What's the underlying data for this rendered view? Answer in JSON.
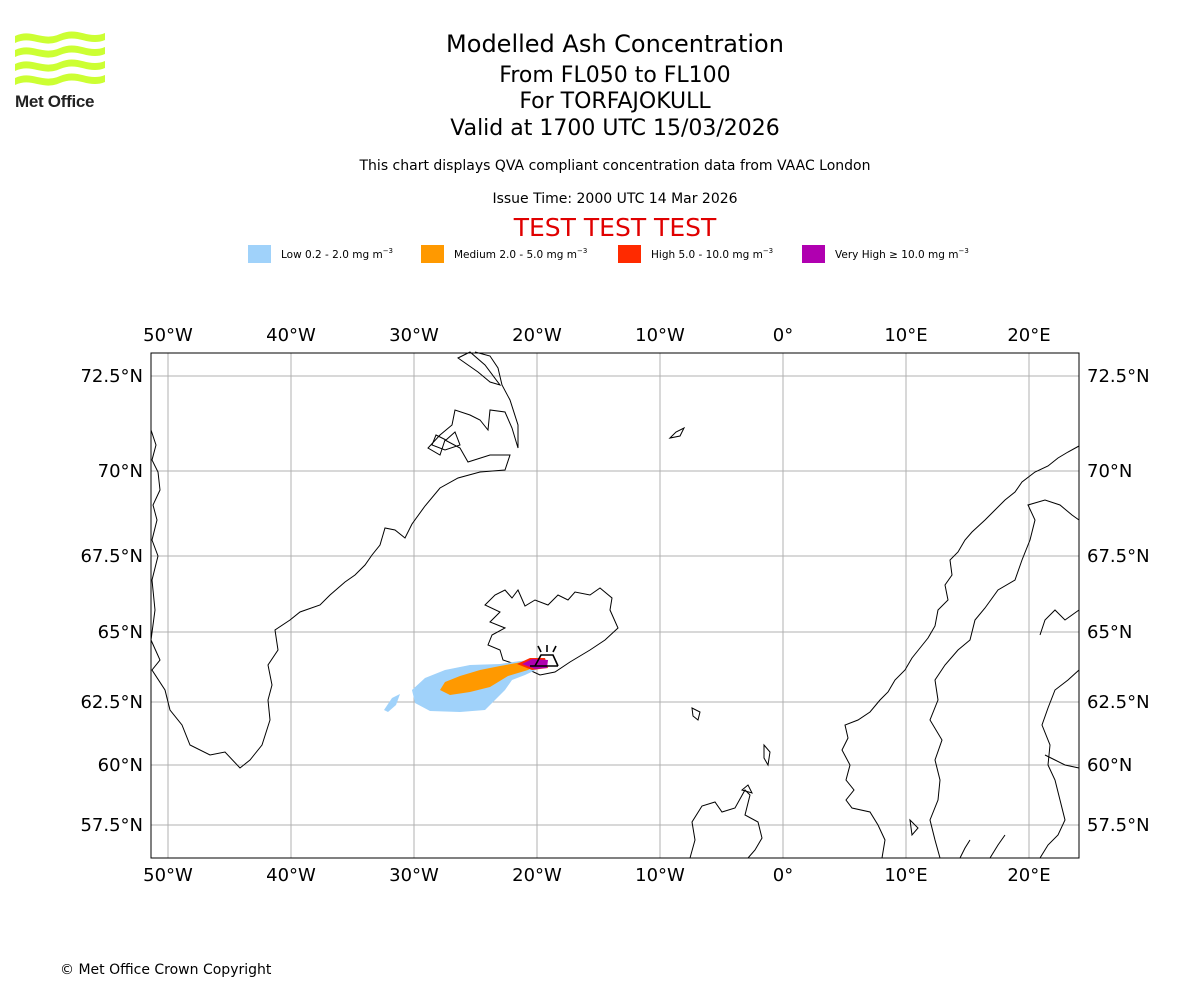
{
  "logo": {
    "text": "Met Office",
    "color": "#ccff33"
  },
  "header": {
    "title": "Modelled Ash Concentration",
    "levels": "From FL050 to FL100",
    "volcano": "For TORFAJOKULL",
    "valid": "Valid at 1700 UTC 15/03/2026",
    "note": "This chart displays QVA compliant concentration data from VAAC London",
    "issue": "Issue Time: 2000 UTC 14 Mar 2026",
    "test_banner": "TEST TEST TEST"
  },
  "legend": [
    {
      "label": "Low 0.2 - 2.0 mg m",
      "color": "#a0d2fa"
    },
    {
      "label": "Medium 2.0 - 5.0 mg m",
      "color": "#ff9900"
    },
    {
      "label": "High 5.0 - 10.0 mg m",
      "color": "#ff2a00"
    },
    {
      "label": "Very High ≥ 10.0 mg m",
      "color": "#b000b0"
    }
  ],
  "legend_unit_exponent": "−3",
  "map": {
    "lon_ticks": [
      "50°W",
      "40°W",
      "30°W",
      "20°W",
      "10°W",
      "0°",
      "10°E",
      "20°E"
    ],
    "lat_ticks": [
      "72.5°N",
      "70°N",
      "67.5°N",
      "65°N",
      "62.5°N",
      "60°N",
      "57.5°N"
    ],
    "volcano_symbol": "volcano-icon"
  },
  "footer": {
    "copyright": "© Met Office Crown Copyright"
  }
}
